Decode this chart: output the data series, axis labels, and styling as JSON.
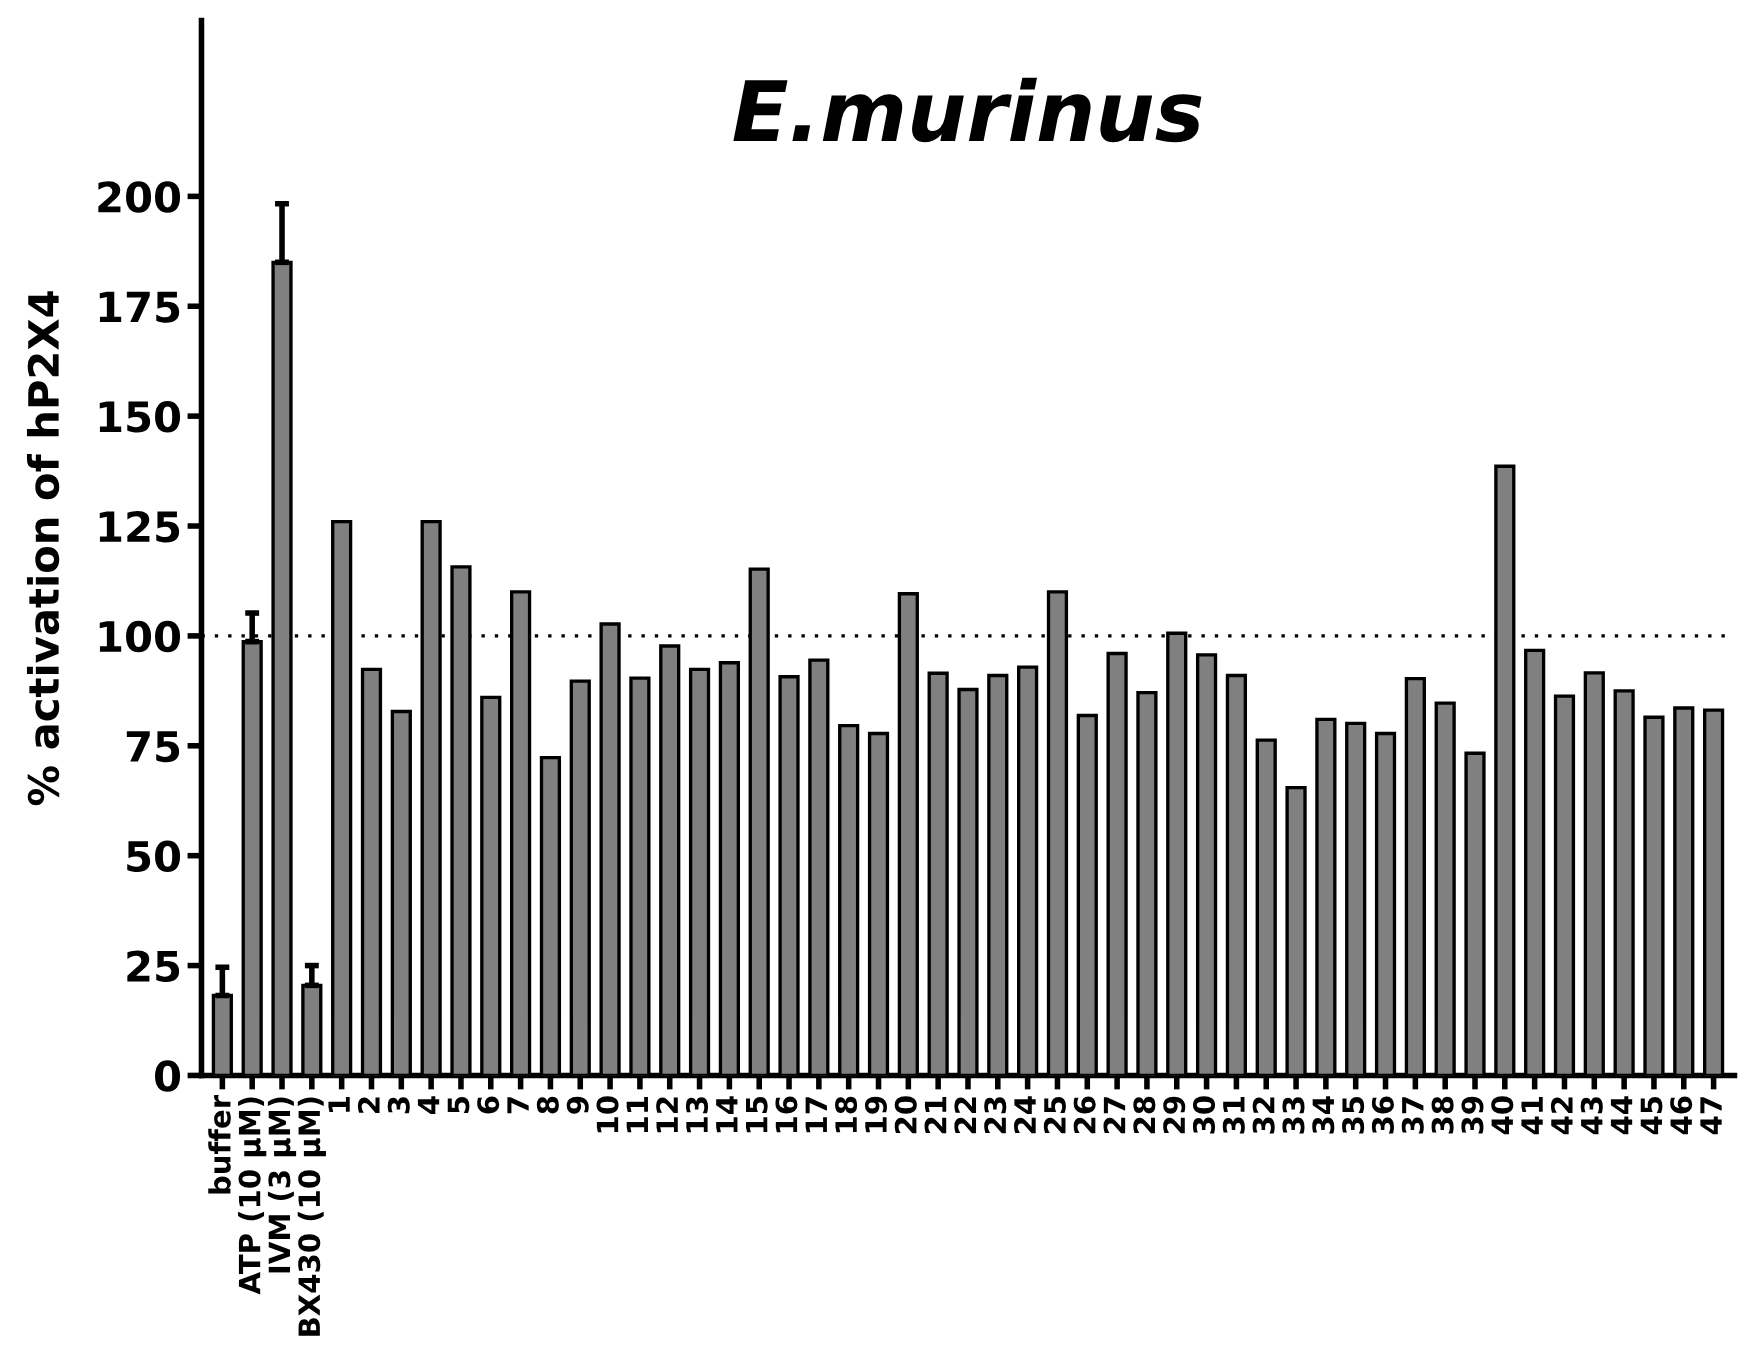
{
  "chart_data": {
    "type": "bar",
    "title": "E.murinus",
    "ylabel": "% activation of hP2X4",
    "categories": [
      "buffer",
      "ATP (10 μM)",
      "IVM (3 μM)",
      "BX430 (10 μM)",
      "1",
      "2",
      "3",
      "4",
      "5",
      "6",
      "7",
      "8",
      "9",
      "10",
      "11",
      "12",
      "13",
      "14",
      "15",
      "16",
      "17",
      "18",
      "19",
      "20",
      "21",
      "22",
      "23",
      "24",
      "25",
      "26",
      "27",
      "28",
      "29",
      "30",
      "31",
      "32",
      "33",
      "34",
      "35",
      "36",
      "37",
      "38",
      "39",
      "40",
      "41",
      "42",
      "43",
      "44",
      "45",
      "46",
      "47"
    ],
    "values": [
      18.2,
      98.7,
      185,
      20.5,
      126,
      92.4,
      82.8,
      126,
      115.7,
      86,
      110,
      72.3,
      89.7,
      102.7,
      90.4,
      97.7,
      92.4,
      93.9,
      115.2,
      90.7,
      94.5,
      79.6,
      77.8,
      109.6,
      91.5,
      87.8,
      91,
      92.9,
      110,
      81.9,
      96,
      87.1,
      100.6,
      95.7,
      91,
      76.3,
      65.5,
      81,
      80.1,
      77.8,
      90.3,
      84.7,
      73.3,
      138.6,
      96.7,
      86.3,
      91.6,
      87.5,
      81.5,
      83.6,
      83.1
    ],
    "errors": [
      [
        18.2,
        24.6
      ],
      [
        98.7,
        105.2
      ],
      [
        185,
        198.3
      ],
      [
        20.5,
        25
      ],
      null,
      null,
      null,
      null,
      null,
      null,
      null,
      null,
      null,
      null,
      null,
      null,
      null,
      null,
      null,
      null,
      null,
      null,
      null,
      null,
      null,
      null,
      null,
      null,
      null,
      null,
      null,
      null,
      null,
      null,
      null,
      null,
      null,
      null,
      null,
      null,
      null,
      null,
      null,
      null,
      null,
      null,
      null,
      null,
      null,
      null,
      null
    ],
    "color": "#808080",
    "ylim": [
      0,
      240
    ],
    "yticks": [
      0,
      25,
      50,
      75,
      100,
      125,
      150,
      175,
      200
    ],
    "ref_lines": [
      {
        "axis": "y",
        "value": 100,
        "line_style": "dotted",
        "color": "#000000"
      }
    ],
    "grid": false,
    "legend": false
  }
}
